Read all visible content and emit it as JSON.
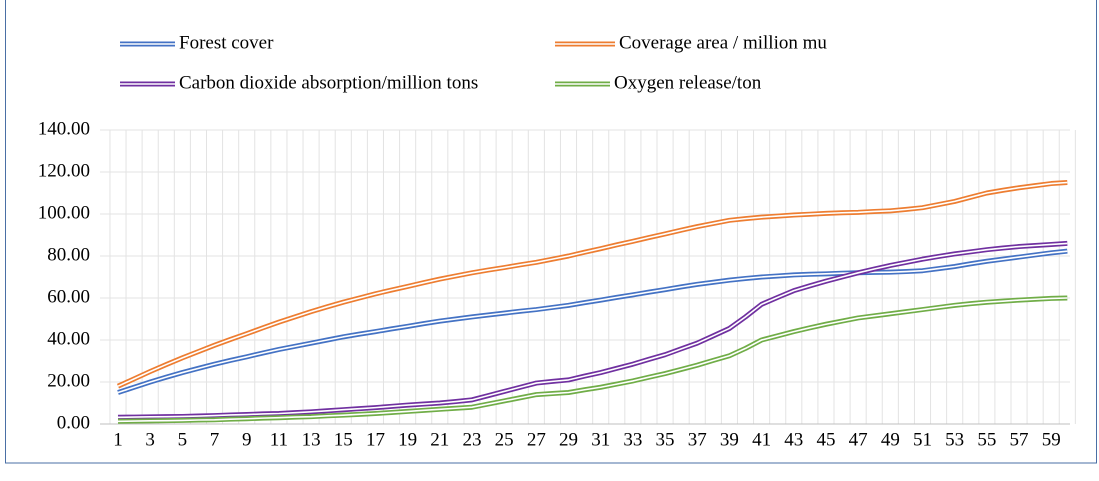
{
  "chart_data": {
    "type": "line",
    "categories": [
      1,
      null,
      3,
      null,
      5,
      null,
      7,
      null,
      9,
      null,
      11,
      null,
      13,
      null,
      15,
      null,
      17,
      null,
      19,
      null,
      21,
      null,
      23,
      null,
      25,
      null,
      27,
      null,
      29,
      null,
      31,
      null,
      33,
      null,
      35,
      null,
      37,
      null,
      39,
      null,
      41,
      null,
      43,
      null,
      45,
      null,
      47,
      null,
      49,
      null,
      51,
      null,
      53,
      null,
      55,
      null,
      57,
      null,
      59,
      null
    ],
    "series": [
      {
        "name": "Forest cover",
        "color": "#4472c4",
        "values": [
          15,
          17.5,
          20,
          22.3,
          24.5,
          26.5,
          28.5,
          30.3,
          32,
          33.8,
          35.5,
          37,
          38.5,
          40,
          41.5,
          42.8,
          44,
          45.3,
          46.5,
          47.8,
          49,
          50,
          51,
          51.9,
          52.8,
          53.7,
          54.5,
          55.5,
          56.5,
          57.8,
          59,
          60.3,
          61.5,
          62.8,
          64,
          65.3,
          66.5,
          67.5,
          68.5,
          69.3,
          70,
          70.5,
          71,
          71.3,
          71.5,
          71.8,
          72,
          72.2,
          72.3,
          72.6,
          73,
          74,
          75,
          76.3,
          77.5,
          78.5,
          79.5,
          80.5,
          81.5,
          82.3
        ]
      },
      {
        "name": "Coverage area / million mu",
        "color": "#ed7d31",
        "values": [
          18,
          21.5,
          25,
          28.3,
          31.5,
          34.5,
          37.5,
          40.3,
          43,
          45.8,
          48.5,
          51,
          53.5,
          55.8,
          58,
          60,
          62,
          63.8,
          65.5,
          67.3,
          69,
          70.5,
          72,
          73.3,
          74.5,
          75.8,
          77,
          78.5,
          80,
          81.8,
          83.5,
          85.3,
          87,
          88.8,
          90.5,
          92.3,
          94,
          95.5,
          97,
          97.8,
          98.5,
          99,
          99.5,
          99.9,
          100.3,
          100.6,
          100.8,
          101.2,
          101.5,
          102.2,
          103,
          104.5,
          106,
          108,
          110,
          111.3,
          112.5,
          113.5,
          114.5,
          115
        ]
      },
      {
        "name": "Carbon dioxide absorption/million tons",
        "color": "#7030a0",
        "values": [
          3.2,
          3.3,
          3.4,
          3.5,
          3.6,
          3.8,
          4,
          4.3,
          4.5,
          4.8,
          5,
          5.4,
          5.8,
          6.3,
          6.8,
          7.3,
          7.8,
          8.4,
          9,
          9.5,
          10,
          10.7,
          11.5,
          13.5,
          15.5,
          17.5,
          19.5,
          20.3,
          21,
          22.8,
          24.5,
          26.5,
          28.5,
          30.8,
          33,
          35.8,
          38.5,
          42,
          45.5,
          51,
          57,
          60.3,
          63.5,
          65.8,
          68,
          70,
          72,
          73.8,
          75.5,
          77,
          78.5,
          79.8,
          81,
          82,
          83,
          83.8,
          84.5,
          85,
          85.5,
          86
        ]
      },
      {
        "name": "Oxygen release/ton",
        "color": "#70ad47",
        "values": [
          1.3,
          1.4,
          1.5,
          1.6,
          1.7,
          1.9,
          2,
          2.3,
          2.5,
          2.8,
          3,
          3.3,
          3.5,
          3.9,
          4.2,
          4.6,
          5,
          5.5,
          6,
          6.5,
          7,
          7.5,
          8,
          9.5,
          11,
          12.5,
          14,
          14.5,
          15,
          16.3,
          17.5,
          19,
          20.5,
          22.3,
          24,
          26,
          28,
          30.3,
          32.5,
          36,
          40,
          42,
          44,
          45.8,
          47.5,
          49,
          50.5,
          51.5,
          52.5,
          53.5,
          54.5,
          55.5,
          56.5,
          57.3,
          58,
          58.5,
          59,
          59.4,
          59.8,
          60
        ]
      }
    ],
    "ylim": [
      0,
      140
    ],
    "yticks": [
      {
        "value": 0,
        "label": "0.00"
      },
      {
        "value": 20,
        "label": "20.00"
      },
      {
        "value": 40,
        "label": "40.00"
      },
      {
        "value": 60,
        "label": "60.00"
      },
      {
        "value": 80,
        "label": "80.00"
      },
      {
        "value": 100,
        "label": "100.00"
      },
      {
        "value": 120,
        "label": "120.00"
      },
      {
        "value": 140,
        "label": "140.00"
      }
    ],
    "grid": true
  }
}
